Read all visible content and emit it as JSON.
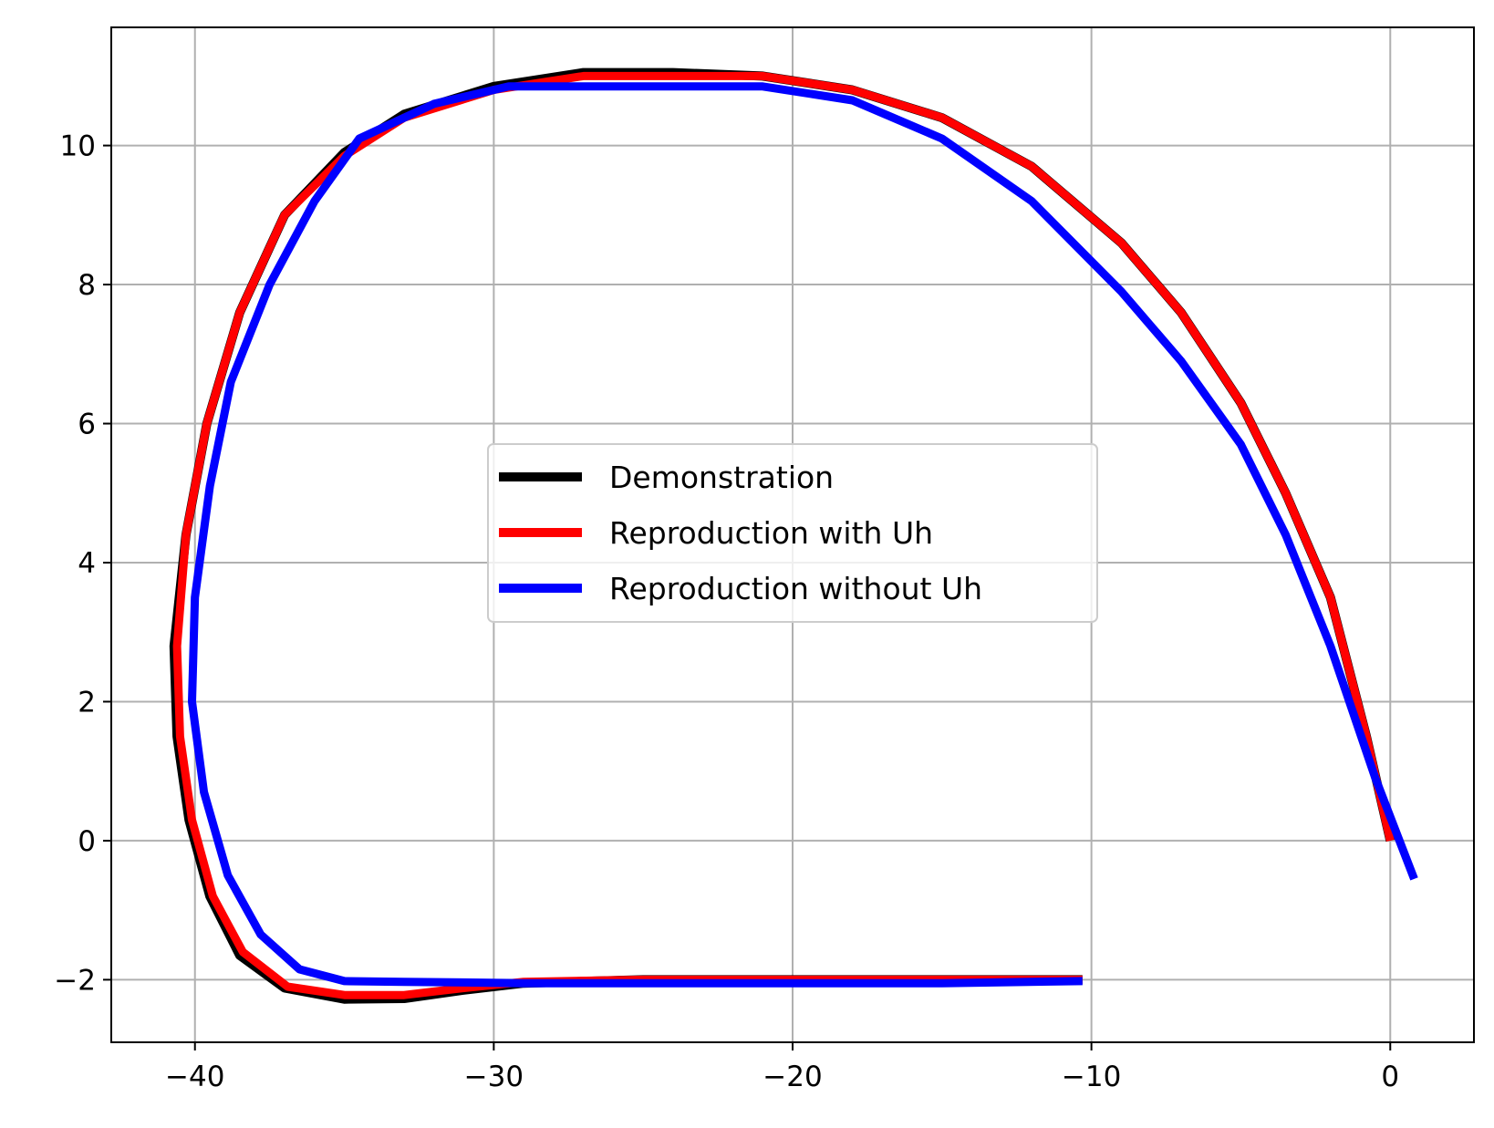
{
  "chart_data": {
    "type": "line",
    "title": "",
    "xlabel": "",
    "ylabel": "",
    "xlim": [
      -42.8,
      2.8
    ],
    "ylim": [
      -2.9,
      11.7
    ],
    "xticks": [
      -40,
      -30,
      -20,
      -10,
      0
    ],
    "yticks": [
      -2,
      0,
      2,
      4,
      6,
      8,
      10
    ],
    "xtick_labels": [
      "−40",
      "−30",
      "−20",
      "−10",
      "0"
    ],
    "ytick_labels": [
      "−2",
      "0",
      "2",
      "4",
      "6",
      "8",
      "10"
    ],
    "grid": true,
    "legend_position": "center",
    "series": [
      {
        "name": "Demonstration",
        "color": "#000000",
        "points": [
          [
            0,
            0
          ],
          [
            -0.8,
            1.5
          ],
          [
            -2,
            3.5
          ],
          [
            -3.5,
            5
          ],
          [
            -5,
            6.3
          ],
          [
            -7,
            7.6
          ],
          [
            -9,
            8.6
          ],
          [
            -12,
            9.7
          ],
          [
            -15,
            10.4
          ],
          [
            -18,
            10.8
          ],
          [
            -21,
            11.0
          ],
          [
            -24,
            11.05
          ],
          [
            -27,
            11.05
          ],
          [
            -30,
            10.85
          ],
          [
            -33,
            10.45
          ],
          [
            -35,
            9.9
          ],
          [
            -37,
            9.0
          ],
          [
            -38.5,
            7.6
          ],
          [
            -39.6,
            6.0
          ],
          [
            -40.3,
            4.4
          ],
          [
            -40.7,
            2.8
          ],
          [
            -40.6,
            1.5
          ],
          [
            -40.2,
            0.3
          ],
          [
            -39.5,
            -0.8
          ],
          [
            -38.5,
            -1.65
          ],
          [
            -37,
            -2.12
          ],
          [
            -35,
            -2.28
          ],
          [
            -33,
            -2.27
          ],
          [
            -31,
            -2.15
          ],
          [
            -29,
            -2.05
          ],
          [
            -25,
            -2.0
          ],
          [
            -20,
            -2.0
          ],
          [
            -15,
            -2.0
          ],
          [
            -10.3,
            -2.0
          ]
        ]
      },
      {
        "name": "Reproduction with Uh",
        "color": "#ff0000",
        "points": [
          [
            0,
            0
          ],
          [
            -0.8,
            1.5
          ],
          [
            -2,
            3.5
          ],
          [
            -3.5,
            5
          ],
          [
            -5,
            6.3
          ],
          [
            -7,
            7.6
          ],
          [
            -9,
            8.6
          ],
          [
            -12,
            9.7
          ],
          [
            -15,
            10.4
          ],
          [
            -18,
            10.8
          ],
          [
            -21,
            11.0
          ],
          [
            -24,
            11.0
          ],
          [
            -27,
            11.0
          ],
          [
            -30,
            10.8
          ],
          [
            -33,
            10.4
          ],
          [
            -35,
            9.85
          ],
          [
            -37,
            9.0
          ],
          [
            -38.5,
            7.6
          ],
          [
            -39.6,
            6.0
          ],
          [
            -40.3,
            4.4
          ],
          [
            -40.6,
            2.8
          ],
          [
            -40.5,
            1.5
          ],
          [
            -40.1,
            0.3
          ],
          [
            -39.4,
            -0.8
          ],
          [
            -38.4,
            -1.6
          ],
          [
            -36.9,
            -2.1
          ],
          [
            -35,
            -2.22
          ],
          [
            -33,
            -2.22
          ],
          [
            -31,
            -2.12
          ],
          [
            -29,
            -2.03
          ],
          [
            -25,
            -2.0
          ],
          [
            -20,
            -2.0
          ],
          [
            -15,
            -2.0
          ],
          [
            -10.3,
            -2.0
          ]
        ]
      },
      {
        "name": "Reproduction without Uh",
        "color": "#0000ff",
        "points": [
          [
            0.8,
            -0.55
          ],
          [
            -0.5,
            0.9
          ],
          [
            -2,
            2.8
          ],
          [
            -3.5,
            4.4
          ],
          [
            -5,
            5.7
          ],
          [
            -7,
            6.9
          ],
          [
            -9,
            7.9
          ],
          [
            -12,
            9.2
          ],
          [
            -15,
            10.1
          ],
          [
            -18,
            10.65
          ],
          [
            -21,
            10.85
          ],
          [
            -24,
            10.85
          ],
          [
            -27,
            10.85
          ],
          [
            -29.5,
            10.85
          ],
          [
            -32,
            10.6
          ],
          [
            -34.5,
            10.1
          ],
          [
            -36,
            9.2
          ],
          [
            -37.5,
            8.0
          ],
          [
            -38.8,
            6.6
          ],
          [
            -39.5,
            5.1
          ],
          [
            -40.0,
            3.5
          ],
          [
            -40.1,
            2.0
          ],
          [
            -39.7,
            0.7
          ],
          [
            -38.9,
            -0.5
          ],
          [
            -37.8,
            -1.35
          ],
          [
            -36.5,
            -1.85
          ],
          [
            -35,
            -2.02
          ],
          [
            -33,
            -2.03
          ],
          [
            -31,
            -2.04
          ],
          [
            -29,
            -2.05
          ],
          [
            -25,
            -2.05
          ],
          [
            -20,
            -2.05
          ],
          [
            -15,
            -2.05
          ],
          [
            -10.3,
            -2.02
          ]
        ]
      }
    ]
  },
  "colors": {
    "background": "#ffffff",
    "grid": "#b0b0b0",
    "axes": "#000000",
    "legend_border": "#cccccc"
  }
}
